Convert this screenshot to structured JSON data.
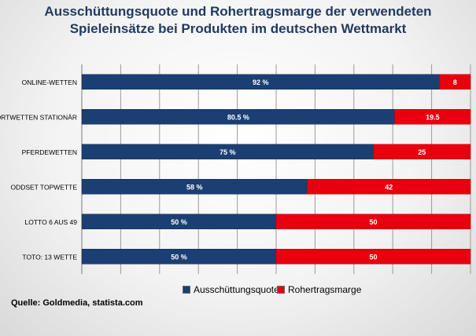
{
  "title_line1": "Ausschüttungsquote und Rohertragsmarge der verwendeten",
  "title_line2": "Spieleinsätze bei Produkten im deutschen Wettmarkt",
  "source": "Quelle: Goldmedia, statista.com",
  "colors": {
    "payout": "#1b3f73",
    "margin": "#e8000f",
    "grid": "#9a9a9a"
  },
  "chart_data": {
    "type": "bar",
    "orientation": "horizontal",
    "stacked": true,
    "title": "Ausschüttungsquote und Rohertragsmarge der verwendeten Spieleinsätze bei Produkten im deutschen Wettmarkt",
    "categories": [
      "ONLINE-WETTEN",
      "SPORTWETTEN STATIONÄR",
      "PFERDEWETTEN",
      "ODDSET TOPWETTE",
      "LOTTO 6 AUS 49",
      "TOTO: 13 WETTE"
    ],
    "series": [
      {
        "name": "Ausschüttungsquote",
        "values": [
          92,
          80.5,
          75,
          58,
          50,
          50
        ],
        "labels": [
          "92 %",
          "80.5 %",
          "75 %",
          "58 %",
          "50 %",
          "50 %"
        ]
      },
      {
        "name": "Rohertragsmarge",
        "values": [
          8,
          19.5,
          25,
          42,
          50,
          50
        ],
        "labels": [
          "8",
          "19.5",
          "25",
          "42",
          "50",
          "50"
        ]
      }
    ],
    "xlim": [
      0,
      100
    ],
    "grid": true,
    "legend_position": "bottom"
  }
}
